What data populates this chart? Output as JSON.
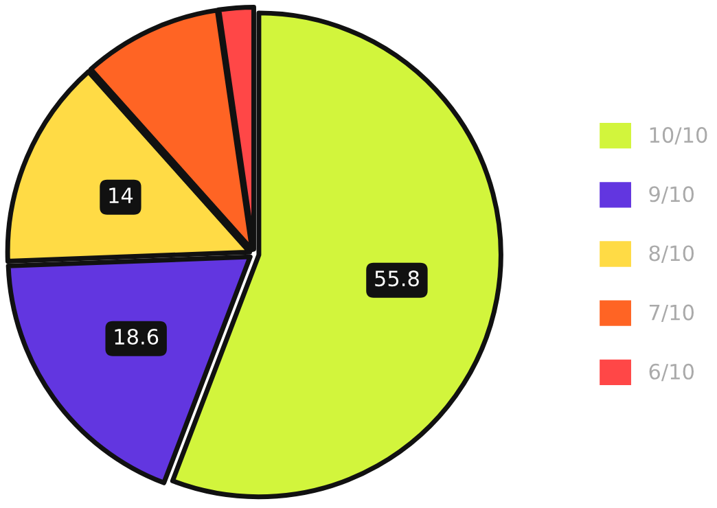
{
  "chart_data": {
    "type": "pie",
    "categories": [
      "10/10",
      "9/10",
      "8/10",
      "7/10",
      "6/10"
    ],
    "values": [
      55.8,
      18.6,
      14,
      9.3,
      2.3
    ],
    "colors": [
      "#d2f53c",
      "#6236e0",
      "#ffdb45",
      "#ff6424",
      "#ff4747"
    ],
    "value_labels": [
      "55.8",
      "18.6",
      "14",
      null,
      null
    ],
    "legend": "right"
  }
}
